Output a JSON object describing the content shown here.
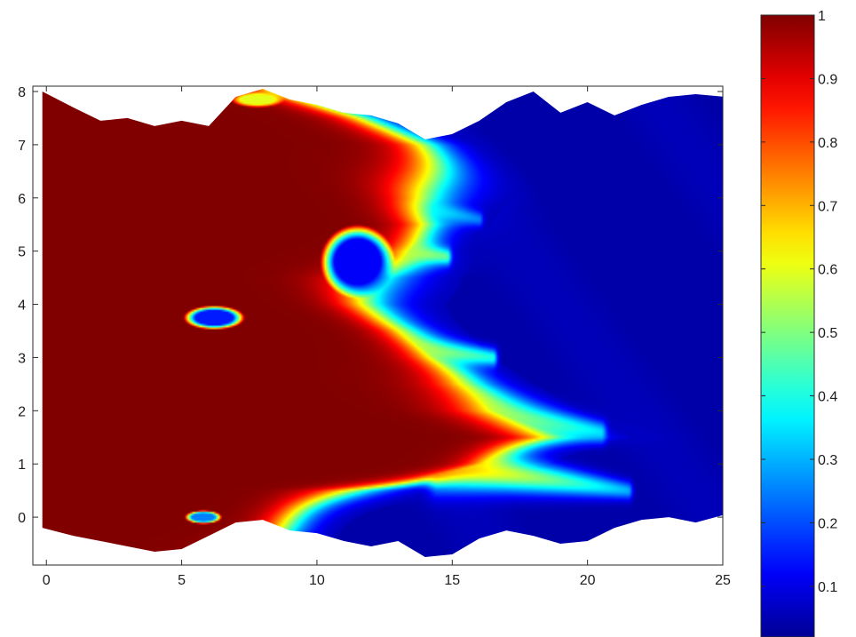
{
  "chart_data": {
    "type": "heatmap",
    "title": "",
    "xlabel": "",
    "ylabel": "",
    "xlim": [
      -0.5,
      25
    ],
    "ylim": [
      -0.9,
      8.1
    ],
    "x_ticks": [
      0,
      5,
      10,
      15,
      20,
      25
    ],
    "x_tick_labels": [
      "0",
      "5",
      "10",
      "15",
      "20",
      "25"
    ],
    "y_ticks": [
      0,
      1,
      2,
      3,
      4,
      5,
      6,
      7,
      8
    ],
    "y_tick_labels": [
      "0",
      "1",
      "2",
      "3",
      "4",
      "5",
      "6",
      "7",
      "8"
    ],
    "colorbar": {
      "colormap": "jet",
      "range": [
        0.02,
        1
      ],
      "ticks": [
        0.1,
        0.2,
        0.3,
        0.4,
        0.5,
        0.6,
        0.7,
        0.8,
        0.9,
        1
      ],
      "tick_labels": [
        "0.1",
        "0.2",
        "0.3",
        "0.4",
        "0.5",
        "0.6",
        "0.7",
        "0.8",
        "0.9",
        "1"
      ]
    },
    "domain": {
      "top_boundary": [
        [
          0,
          8.0
        ],
        [
          1,
          7.7
        ],
        [
          2,
          7.45
        ],
        [
          3,
          7.5
        ],
        [
          4,
          7.35
        ],
        [
          5,
          7.45
        ],
        [
          6,
          7.35
        ],
        [
          7,
          7.9
        ],
        [
          8,
          8.05
        ],
        [
          9,
          7.85
        ],
        [
          10,
          7.75
        ],
        [
          11,
          7.6
        ],
        [
          12,
          7.55
        ],
        [
          13,
          7.4
        ],
        [
          14,
          7.1
        ],
        [
          15,
          7.2
        ],
        [
          16,
          7.45
        ],
        [
          17,
          7.8
        ],
        [
          18,
          8.0
        ],
        [
          19,
          7.6
        ],
        [
          20,
          7.8
        ],
        [
          21,
          7.55
        ],
        [
          22,
          7.75
        ],
        [
          23,
          7.9
        ],
        [
          24,
          7.95
        ],
        [
          25,
          7.9
        ]
      ],
      "bottom_boundary": [
        [
          0,
          -0.2
        ],
        [
          1,
          -0.35
        ],
        [
          2,
          -0.45
        ],
        [
          3,
          -0.55
        ],
        [
          4,
          -0.65
        ],
        [
          5,
          -0.6
        ],
        [
          6,
          -0.35
        ],
        [
          7,
          -0.1
        ],
        [
          8,
          -0.05
        ],
        [
          9,
          -0.25
        ],
        [
          10,
          -0.3
        ],
        [
          11,
          -0.45
        ],
        [
          12,
          -0.55
        ],
        [
          13,
          -0.45
        ],
        [
          14,
          -0.75
        ],
        [
          15,
          -0.7
        ],
        [
          16,
          -0.4
        ],
        [
          17,
          -0.25
        ],
        [
          18,
          -0.35
        ],
        [
          19,
          -0.5
        ],
        [
          20,
          -0.45
        ],
        [
          21,
          -0.2
        ],
        [
          22,
          -0.05
        ],
        [
          23,
          0.0
        ],
        [
          24,
          -0.1
        ],
        [
          25,
          0.05
        ]
      ],
      "left_x": -0.15,
      "right_x": 25.1
    },
    "front_x_by_y": [
      [
        -0.4,
        8.0
      ],
      [
        0.0,
        9.5
      ],
      [
        0.5,
        11.5
      ],
      [
        1.0,
        16.5
      ],
      [
        1.5,
        19.0
      ],
      [
        2.0,
        16.5
      ],
      [
        2.5,
        15.0
      ],
      [
        3.0,
        14.0
      ],
      [
        3.5,
        13.5
      ],
      [
        4.0,
        12.5
      ],
      [
        4.5,
        12.2
      ],
      [
        5.0,
        13.0
      ],
      [
        5.5,
        14.5
      ],
      [
        6.0,
        14.5
      ],
      [
        6.5,
        14.0
      ],
      [
        7.0,
        13.5
      ],
      [
        7.5,
        11.5
      ],
      [
        8.0,
        8.5
      ]
    ],
    "front_transition_width": 2.6,
    "regions": [
      {
        "name": "Enclosed low region near (11,4.8)",
        "cx": 11.5,
        "cy": 4.8,
        "rx": 1.1,
        "ry": 0.55,
        "value": 0.12
      },
      {
        "name": "Obstacle stripe near (6,3.7)",
        "cx": 6.2,
        "cy": 3.75,
        "rx": 0.9,
        "ry": 0.18,
        "value": 0.15
      },
      {
        "name": "Obstacle stripe near (6,-0.1)",
        "cx": 5.8,
        "cy": 0.0,
        "rx": 0.55,
        "ry": 0.1,
        "value": 0.25
      },
      {
        "name": "Obstacle stripe near (7.5,7.9)",
        "cx": 7.8,
        "cy": 7.85,
        "rx": 0.8,
        "ry": 0.12,
        "value": 0.6
      }
    ],
    "fingers": [
      {
        "from": [
          8.0,
          5.3
        ],
        "to": [
          14.8,
          4.9
        ],
        "width": 0.28,
        "value": 0.92
      },
      {
        "from": [
          9.0,
          3.4
        ],
        "to": [
          16.5,
          3.0
        ],
        "width": 0.3,
        "value": 0.85
      },
      {
        "from": [
          12.0,
          2.3
        ],
        "to": [
          20.5,
          1.6
        ],
        "width": 0.35,
        "value": 0.8
      },
      {
        "from": [
          14.5,
          1.0
        ],
        "to": [
          21.5,
          0.5
        ],
        "width": 0.3,
        "value": 0.75
      },
      {
        "from": [
          10.0,
          6.2
        ],
        "to": [
          16.0,
          5.6
        ],
        "width": 0.25,
        "value": 0.7
      }
    ]
  }
}
